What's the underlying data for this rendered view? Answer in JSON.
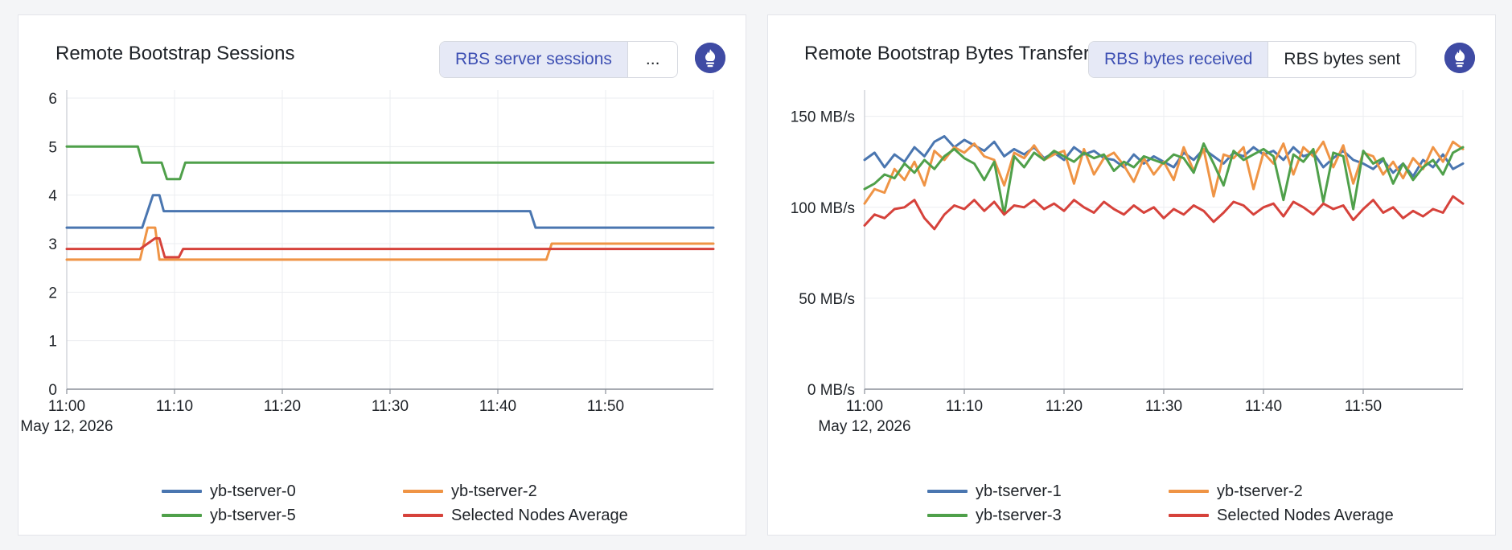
{
  "panels": [
    {
      "title": "Remote Bootstrap Sessions",
      "toggle": [
        "RBS server sessions",
        "..."
      ],
      "prometheus_icon": "prometheus-icon"
    },
    {
      "title": "Remote Bootstrap Bytes Transferred",
      "toggle": [
        "RBS bytes received",
        "RBS bytes sent"
      ],
      "prometheus_icon": "prometheus-icon"
    }
  ],
  "colors": {
    "blue": "#4a76b0",
    "orange": "#ef9445",
    "green": "#4fa04a",
    "red": "#d6423b",
    "accent": "#3d4fb3"
  },
  "chart_data": [
    {
      "type": "line",
      "title": "Remote Bootstrap Sessions",
      "x_ticks": [
        "11:00",
        "11:10",
        "11:20",
        "11:30",
        "11:40",
        "11:50"
      ],
      "x_sublabel": "May 12, 2026",
      "xlim": [
        0,
        60
      ],
      "ylim": [
        0,
        6
      ],
      "y_ticks": [
        "0",
        "1",
        "2",
        "3",
        "4",
        "5",
        "6"
      ],
      "y_tick_values": [
        0,
        1,
        2,
        3,
        4,
        5,
        6
      ],
      "grid": true,
      "legend_position": "bottom",
      "series": [
        {
          "name": "yb-tserver-0",
          "color": "#4a76b0",
          "x": [
            0,
            7,
            8,
            8.6,
            9,
            43,
            43.5,
            60
          ],
          "y": [
            3.33,
            3.33,
            4.0,
            4.0,
            3.67,
            3.67,
            3.33,
            3.33
          ]
        },
        {
          "name": "yb-tserver-2",
          "color": "#ef9445",
          "x": [
            0,
            6.8,
            7.5,
            8.2,
            8.6,
            44.5,
            45,
            60
          ],
          "y": [
            2.67,
            2.67,
            3.33,
            3.33,
            2.67,
            2.67,
            3.0,
            3.0
          ],
          "dash": "6"
        },
        {
          "name": "yb-tserver-5",
          "color": "#4fa04a",
          "x": [
            0,
            6.6,
            7,
            8.8,
            9.3,
            10.5,
            11,
            60
          ],
          "y": [
            5.0,
            5.0,
            4.67,
            4.67,
            4.33,
            4.33,
            4.67,
            4.67
          ]
        },
        {
          "name": "Selected Nodes Average",
          "color": "#d6423b",
          "x": [
            0,
            6.8,
            8.2,
            8.6,
            9.1,
            10.4,
            10.8,
            44,
            44.5,
            60
          ],
          "y": [
            2.89,
            2.89,
            3.11,
            3.11,
            2.72,
            2.72,
            2.89,
            2.89,
            2.89,
            2.89
          ]
        }
      ]
    },
    {
      "type": "line",
      "title": "Remote Bootstrap Bytes Transferred",
      "x_ticks": [
        "11:00",
        "11:10",
        "11:20",
        "11:30",
        "11:40",
        "11:50"
      ],
      "x_sublabel": "May 12, 2026",
      "xlim": [
        0,
        60
      ],
      "ylim": [
        0,
        160
      ],
      "y_ticks": [
        "0 MB/s",
        "50 MB/s",
        "100 MB/s",
        "150 MB/s"
      ],
      "y_tick_values": [
        0,
        50,
        100,
        150
      ],
      "grid": true,
      "legend_position": "bottom",
      "series": [
        {
          "name": "yb-tserver-1",
          "color": "#4a76b0",
          "x": [
            0,
            1,
            2,
            3,
            4,
            5,
            6,
            7,
            8,
            9,
            10,
            11,
            12,
            13,
            14,
            15,
            16,
            17,
            18,
            19,
            20,
            21,
            22,
            23,
            24,
            25,
            26,
            27,
            28,
            29,
            30,
            31,
            32,
            33,
            34,
            35,
            36,
            37,
            38,
            39,
            40,
            41,
            42,
            43,
            44,
            45,
            46,
            47,
            48,
            49,
            50,
            51,
            52,
            53,
            54,
            55,
            56,
            57,
            58,
            59,
            60
          ],
          "y": [
            126,
            130,
            122,
            129,
            125,
            133,
            128,
            136,
            139,
            133,
            137,
            134,
            131,
            136,
            128,
            132,
            129,
            133,
            127,
            130,
            126,
            133,
            129,
            131,
            127,
            126,
            122,
            129,
            124,
            128,
            125,
            122,
            130,
            126,
            132,
            128,
            124,
            130,
            128,
            133,
            129,
            131,
            126,
            133,
            128,
            130,
            122,
            127,
            131,
            126,
            124,
            121,
            126,
            119,
            124,
            117,
            126,
            122,
            129,
            121,
            124
          ]
        },
        {
          "name": "yb-tserver-2",
          "color": "#ef9445",
          "x": [
            0,
            1,
            2,
            3,
            4,
            5,
            6,
            7,
            8,
            9,
            10,
            11,
            12,
            13,
            14,
            15,
            16,
            17,
            18,
            19,
            20,
            21,
            22,
            23,
            24,
            25,
            26,
            27,
            28,
            29,
            30,
            31,
            32,
            33,
            34,
            35,
            36,
            37,
            38,
            39,
            40,
            41,
            42,
            43,
            44,
            45,
            46,
            47,
            48,
            49,
            50,
            51,
            52,
            53,
            54,
            55,
            56,
            57,
            58,
            59,
            60
          ],
          "y": [
            102,
            110,
            108,
            121,
            115,
            125,
            112,
            131,
            126,
            133,
            130,
            135,
            128,
            126,
            112,
            130,
            127,
            134,
            126,
            129,
            131,
            113,
            132,
            118,
            127,
            130,
            123,
            114,
            127,
            118,
            125,
            115,
            133,
            120,
            132,
            106,
            129,
            127,
            133,
            110,
            130,
            124,
            135,
            118,
            133,
            128,
            136,
            122,
            134,
            113,
            130,
            128,
            118,
            125,
            116,
            127,
            121,
            133,
            125,
            136,
            132
          ]
        },
        {
          "name": "yb-tserver-3",
          "color": "#4fa04a",
          "x": [
            0,
            1,
            2,
            3,
            4,
            5,
            6,
            7,
            8,
            9,
            10,
            11,
            12,
            13,
            14,
            15,
            16,
            17,
            18,
            19,
            20,
            21,
            22,
            23,
            24,
            25,
            26,
            27,
            28,
            29,
            30,
            31,
            32,
            33,
            34,
            35,
            36,
            37,
            38,
            39,
            40,
            41,
            42,
            43,
            44,
            45,
            46,
            47,
            48,
            49,
            50,
            51,
            52,
            53,
            54,
            55,
            56,
            57,
            58,
            59,
            60
          ],
          "y": [
            110,
            113,
            118,
            116,
            124,
            119,
            126,
            121,
            128,
            132,
            127,
            124,
            115,
            125,
            96,
            128,
            122,
            130,
            126,
            131,
            128,
            125,
            130,
            127,
            129,
            120,
            125,
            122,
            128,
            126,
            124,
            129,
            127,
            119,
            135,
            124,
            112,
            131,
            126,
            129,
            132,
            128,
            104,
            129,
            125,
            132,
            103,
            130,
            128,
            99,
            131,
            124,
            127,
            113,
            124,
            115,
            122,
            126,
            118,
            130,
            133
          ]
        },
        {
          "name": "Selected Nodes Average",
          "color": "#d6423b",
          "x": [
            0,
            1,
            2,
            3,
            4,
            5,
            6,
            7,
            8,
            9,
            10,
            11,
            12,
            13,
            14,
            15,
            16,
            17,
            18,
            19,
            20,
            21,
            22,
            23,
            24,
            25,
            26,
            27,
            28,
            29,
            30,
            31,
            32,
            33,
            34,
            35,
            36,
            37,
            38,
            39,
            40,
            41,
            42,
            43,
            44,
            45,
            46,
            47,
            48,
            49,
            50,
            51,
            52,
            53,
            54,
            55,
            56,
            57,
            58,
            59,
            60
          ],
          "y": [
            90,
            96,
            94,
            99,
            100,
            104,
            94,
            88,
            96,
            101,
            99,
            104,
            98,
            103,
            96,
            101,
            100,
            104,
            99,
            102,
            98,
            104,
            100,
            97,
            103,
            99,
            96,
            101,
            97,
            100,
            94,
            99,
            96,
            101,
            98,
            92,
            97,
            103,
            101,
            96,
            100,
            102,
            95,
            103,
            100,
            96,
            102,
            99,
            101,
            93,
            99,
            104,
            97,
            100,
            94,
            98,
            95,
            99,
            97,
            106,
            102
          ]
        }
      ]
    }
  ]
}
